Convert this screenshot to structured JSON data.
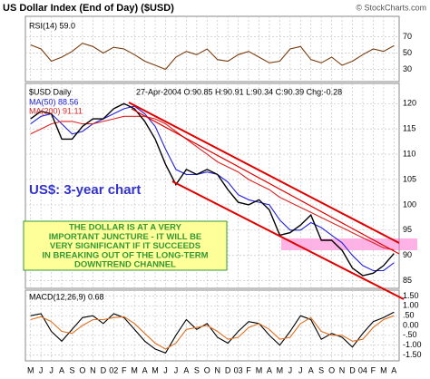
{
  "chart_data": [
    {
      "type": "line",
      "title": "US Dollar Index (End of Day) ($USD)",
      "credit": "© StockCharts.com",
      "ylim": [
        15,
        95
      ],
      "yticks": [
        30,
        50,
        70
      ],
      "grid": true,
      "series": [
        {
          "name": "RSI(14) 59.0",
          "color": "#7a3b0c",
          "values": [
            60,
            55,
            40,
            45,
            52,
            62,
            58,
            50,
            57,
            55,
            48,
            40,
            35,
            30,
            45,
            52,
            48,
            55,
            42,
            40,
            48,
            52,
            45,
            38,
            40,
            55,
            58,
            42,
            38,
            45,
            35,
            40,
            48,
            55,
            52,
            59.0
          ]
        }
      ]
    },
    {
      "type": "line",
      "subtitle": "$USD Daily",
      "info": "27-Apr-2004 O:90.85 H:90.91 L:90.34 C:90.39 Chg:-0.28",
      "ylim": [
        83.5,
        124
      ],
      "yticks": [
        85,
        90,
        95,
        100,
        105,
        110,
        115,
        120
      ],
      "grid": true,
      "annotations": [
        "US$: 3-year chart"
      ],
      "note_lines": [
        "THE DOLLAR IS AT A VERY",
        "IMPORTANT JUNCTURE - IT WILL BE",
        "VERY SIGNIFICANT IF IT SUCCEEDS",
        "IN BREAKING OUT OF THE LONG-TERM",
        "DOWNTREND CHANNEL"
      ],
      "series": [
        {
          "name": "MA(50) 88.56",
          "color": "#2222dd",
          "values": [
            116,
            117.5,
            118,
            116,
            114,
            114.5,
            116,
            117,
            118,
            119,
            119.5,
            118,
            115.5,
            111,
            107,
            106,
            106,
            106.5,
            106,
            104.5,
            102,
            101,
            100.5,
            100,
            97,
            95,
            95,
            96.5,
            95.5,
            94,
            92.5,
            90,
            88,
            87,
            87,
            88.56
          ]
        },
        {
          "name": "MA(200) 91.11",
          "color": "#dd2222",
          "values": [
            114,
            115,
            116,
            116.5,
            116.5,
            116,
            116,
            116.5,
            117,
            117.5,
            117.5,
            117.5,
            117,
            116,
            114.5,
            113,
            111.5,
            110,
            108.5,
            107.5,
            106.5,
            105,
            104,
            103,
            101.5,
            100.5,
            99.5,
            98.5,
            97.5,
            96.5,
            95.5,
            94.5,
            93.5,
            92.5,
            91.5,
            91.11
          ]
        },
        {
          "color": "#000000",
          "values": [
            117,
            118.5,
            118,
            113,
            113,
            115.5,
            117,
            117,
            119,
            120,
            119,
            116.5,
            113,
            108,
            104,
            107,
            106,
            107,
            106,
            103,
            100.5,
            100,
            101,
            99,
            94,
            94.5,
            96,
            98,
            93,
            93,
            91,
            87.5,
            86,
            86.5,
            88,
            90.39
          ]
        }
      ]
    },
    {
      "type": "line",
      "ylim": [
        -1.8,
        1.8
      ],
      "yticks": [
        {
          "value": 1.5,
          "label": "1.50"
        },
        {
          "value": 1,
          "label": "1.00"
        },
        {
          "value": 0.5,
          "label": ".50"
        },
        {
          "value": 0,
          "label": "0.00"
        },
        {
          "value": -0.5,
          "label": "-.50"
        },
        {
          "value": -1,
          "label": "-1.00"
        },
        {
          "value": -1.5,
          "label": "-1.50"
        }
      ],
      "grid": true,
      "categories": [
        "M",
        "J",
        "J",
        "A",
        "S",
        "O",
        "N",
        "D",
        "02",
        "F",
        "M",
        "A",
        "M",
        "J",
        "J",
        "A",
        "S",
        "O",
        "N",
        "D",
        "03",
        "F",
        "M",
        "A",
        "M",
        "J",
        "J",
        "A",
        "S",
        "O",
        "N",
        "D",
        "04",
        "F",
        "M",
        "A"
      ],
      "series": [
        {
          "name": "MACD(12,26,9) 0.68",
          "color": "#000000",
          "values": [
            0.5,
            0.6,
            -0.3,
            -0.8,
            -0.2,
            0.4,
            0.5,
            0.1,
            0.6,
            0.4,
            -0.2,
            -0.8,
            -1.2,
            -1.4,
            -0.5,
            0.3,
            -0.2,
            0.1,
            -0.6,
            -0.9,
            -0.3,
            0.2,
            0.1,
            -0.5,
            -1.0,
            -0.3,
            0.5,
            0.3,
            -0.7,
            -0.4,
            -0.6,
            -1.1,
            -0.4,
            0.2,
            0.4,
            0.68
          ]
        },
        {
          "color": "#e07020",
          "values": [
            0.3,
            0.45,
            0.2,
            -0.3,
            -0.4,
            0,
            0.3,
            0.3,
            0.4,
            0.45,
            0.1,
            -0.4,
            -0.9,
            -1.2,
            -0.9,
            -0.2,
            -0.1,
            0,
            -0.3,
            -0.7,
            -0.6,
            -0.1,
            0.1,
            -0.2,
            -0.7,
            -0.6,
            0.1,
            0.4,
            -0.3,
            -0.5,
            -0.5,
            -0.8,
            -0.7,
            -0.1,
            0.3,
            0.5
          ]
        }
      ]
    }
  ]
}
